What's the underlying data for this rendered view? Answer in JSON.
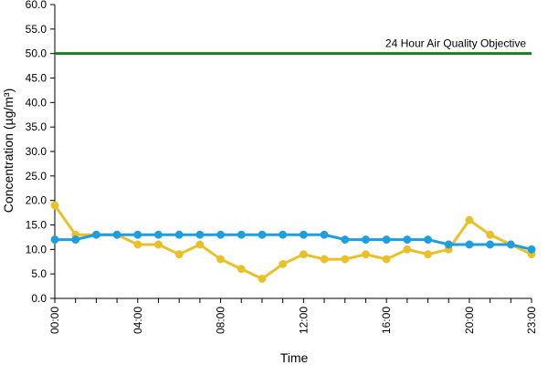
{
  "chart_data": {
    "type": "line",
    "title": "",
    "xlabel": "Time",
    "ylabel": "Concentration (µg/m³)",
    "ylim": [
      0,
      60
    ],
    "yticks": [
      "0.0",
      "5.0",
      "10.0",
      "15.0",
      "20.0",
      "25.0",
      "30.0",
      "35.0",
      "40.0",
      "45.0",
      "50.0",
      "55.0",
      "60.0"
    ],
    "xlim": [
      0,
      23
    ],
    "xticks": [
      {
        "hour": 0,
        "label": "00:00"
      },
      {
        "hour": 4,
        "label": "04:00"
      },
      {
        "hour": 8,
        "label": "08:00"
      },
      {
        "hour": 12,
        "label": "12:00"
      },
      {
        "hour": 16,
        "label": "16:00"
      },
      {
        "hour": 20,
        "label": "20:00"
      },
      {
        "hour": 23,
        "label": "23:00"
      }
    ],
    "grid": false,
    "legend": "none",
    "x": [
      0,
      1,
      2,
      3,
      4,
      5,
      6,
      7,
      8,
      9,
      10,
      11,
      12,
      13,
      14,
      15,
      16,
      17,
      18,
      19,
      20,
      21,
      22,
      23
    ],
    "series": [
      {
        "color": "#e8c12a",
        "values": [
          19,
          13,
          13,
          13,
          11,
          11,
          9,
          11,
          8,
          6,
          4,
          7,
          9,
          8,
          8,
          9,
          8,
          10,
          9,
          10,
          16,
          13,
          11,
          9
        ]
      },
      {
        "color": "#1e9de0",
        "values": [
          12,
          12,
          13,
          13,
          13,
          13,
          13,
          13,
          13,
          13,
          13,
          13,
          13,
          13,
          12,
          12,
          12,
          12,
          12,
          11,
          11,
          11,
          11,
          10
        ]
      }
    ],
    "reference_lines": [
      {
        "y": 50,
        "label": "24 Hour Air Quality Objective",
        "color": "#1e7a1e"
      }
    ]
  }
}
